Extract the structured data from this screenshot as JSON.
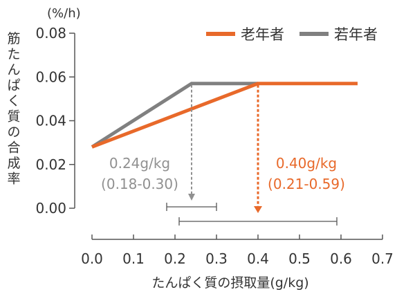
{
  "chart_data": {
    "type": "line",
    "y_unit": "(%/h)",
    "ylabel": "筋たんぱく質の合成率",
    "xlabel": "たんぱく質の摂取量(g/kg)",
    "xlim": [
      0.0,
      0.7
    ],
    "ylim": [
      0.0,
      0.08
    ],
    "x_ticks": [
      "0.0",
      "0.1",
      "0.2",
      "0.3",
      "0.4",
      "0.5",
      "0.6",
      "0.7"
    ],
    "x_tick_values": [
      0.0,
      0.1,
      0.2,
      0.3,
      0.4,
      0.5,
      0.6,
      0.7
    ],
    "y_ticks": [
      "0.00",
      "0.02",
      "0.04",
      "0.06",
      "0.08"
    ],
    "y_tick_values": [
      0.0,
      0.02,
      0.04,
      0.06,
      0.08
    ],
    "grid": false,
    "legend_position": "top-right",
    "series": [
      {
        "name": "若年者",
        "color": "#808080",
        "x": [
          0.0,
          0.24,
          0.4
        ],
        "y": [
          0.028,
          0.057,
          0.057
        ]
      },
      {
        "name": "老年者",
        "color": "#E8692A",
        "x": [
          0.0,
          0.4,
          0.64
        ],
        "y": [
          0.028,
          0.057,
          0.057
        ]
      }
    ],
    "annotations": [
      {
        "series": "若年者",
        "color": "#909090",
        "breakpoint_x": 0.24,
        "breakpoint_y": 0.057,
        "value_label": "0.24g/kg",
        "range_label": "(0.18-0.30)",
        "ci": [
          0.18,
          0.3
        ]
      },
      {
        "series": "老年者",
        "color": "#E8692A",
        "breakpoint_x": 0.4,
        "breakpoint_y": 0.057,
        "value_label": "0.40g/kg",
        "range_label": "(0.21-0.59)",
        "ci": [
          0.21,
          0.59
        ]
      }
    ]
  }
}
